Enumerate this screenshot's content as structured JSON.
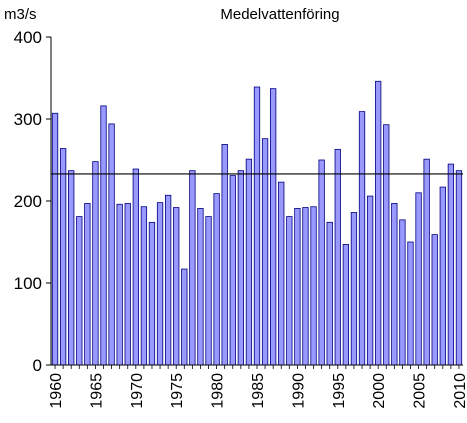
{
  "chart_data": {
    "type": "bar",
    "title": "Medelvattenföring",
    "ylabel": "m3/s",
    "xlabel": "",
    "ylim": [
      0,
      400
    ],
    "yticks": [
      0,
      100,
      200,
      300,
      400
    ],
    "xtick_labels": [
      "1960",
      "1965",
      "1970",
      "1975",
      "1980",
      "1985",
      "1990",
      "1995",
      "2000",
      "2005",
      "2010"
    ],
    "grid": false,
    "legend": "none",
    "bar_color": "#9999ff",
    "bar_edge_color": "#000080",
    "reference_line": {
      "value": 233,
      "color": "#000000"
    },
    "categories": [
      1960,
      1961,
      1962,
      1963,
      1964,
      1965,
      1966,
      1967,
      1968,
      1969,
      1970,
      1971,
      1972,
      1973,
      1974,
      1975,
      1976,
      1977,
      1978,
      1979,
      1980,
      1981,
      1982,
      1983,
      1984,
      1985,
      1986,
      1987,
      1988,
      1989,
      1990,
      1991,
      1992,
      1993,
      1994,
      1995,
      1996,
      1997,
      1998,
      1999,
      2000,
      2001,
      2002,
      2003,
      2004,
      2005,
      2006,
      2007,
      2008,
      2009,
      2010
    ],
    "values": [
      307,
      264,
      237,
      181,
      197,
      248,
      316,
      294,
      196,
      197,
      239,
      193,
      174,
      198,
      207,
      192,
      117,
      237,
      191,
      181,
      209,
      269,
      231,
      237,
      251,
      339,
      276,
      337,
      223,
      181,
      191,
      192,
      193,
      250,
      174,
      263,
      147,
      186,
      309,
      206,
      346,
      293,
      197,
      177,
      150,
      210,
      251,
      159,
      217,
      245,
      237
    ]
  }
}
